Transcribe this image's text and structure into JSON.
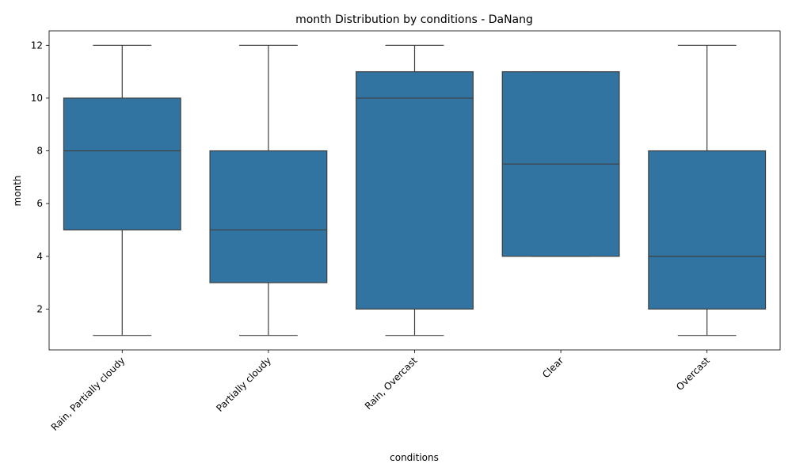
{
  "chart_data": {
    "type": "box",
    "title": "month Distribution by conditions - DaNang",
    "xlabel": "conditions",
    "ylabel": "month",
    "ylim": [
      0.45,
      12.55
    ],
    "yticks": [
      2,
      4,
      6,
      8,
      10,
      12
    ],
    "grid": false,
    "legend": "none",
    "box_color": "#3274a1",
    "line_color": "#3f3f3f",
    "categories": [
      "Rain, Partially cloudy",
      "Partially cloudy",
      "Rain, Overcast",
      "Clear",
      "Overcast"
    ],
    "boxes": [
      {
        "category": "Rain, Partially cloudy",
        "whisker_low": 1,
        "q1": 5,
        "median": 8,
        "q3": 10,
        "whisker_high": 12
      },
      {
        "category": "Partially cloudy",
        "whisker_low": 1,
        "q1": 3,
        "median": 5,
        "q3": 8,
        "whisker_high": 12
      },
      {
        "category": "Rain, Overcast",
        "whisker_low": 1,
        "q1": 2,
        "median": 10,
        "q3": 11,
        "whisker_high": 12
      },
      {
        "category": "Clear",
        "whisker_low": 4,
        "q1": 4,
        "median": 7.5,
        "q3": 11,
        "whisker_high": 11
      },
      {
        "category": "Overcast",
        "whisker_low": 1,
        "q1": 2,
        "median": 4,
        "q3": 8,
        "whisker_high": 12
      }
    ]
  }
}
